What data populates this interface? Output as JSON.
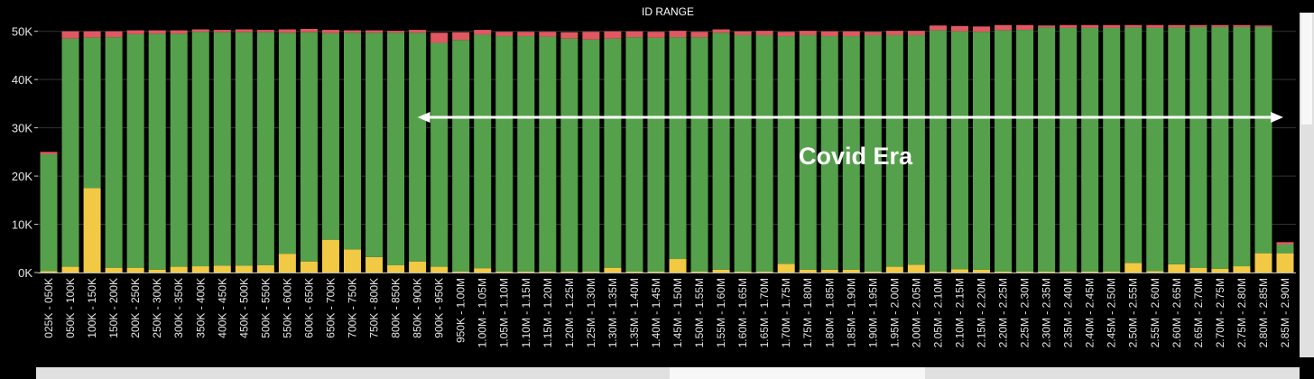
{
  "colors": {
    "background": "#000000",
    "green": "#55a04b",
    "yellow": "#f1c945",
    "red": "#df5862",
    "grid": "#333333",
    "scrollbar_track": "#e0e0e0",
    "scrollbar_thumb": "#f7f7f7"
  },
  "chart_data": {
    "type": "bar",
    "stacked": true,
    "title": "ID RANGE",
    "annotation": "Covid Era",
    "annotation_arrow": {
      "from_category": "850K - 900K",
      "to_category": "2.85M - 2.90M",
      "direction": "both"
    },
    "ylim": [
      0,
      52000
    ],
    "yticks": [
      0,
      10000,
      20000,
      30000,
      40000,
      50000
    ],
    "ytick_labels": [
      "0K",
      "10K",
      "20K",
      "30K",
      "40K",
      "50K"
    ],
    "grid": true,
    "categories": [
      "025K - 050K",
      "050K - 100K",
      "100K - 150K",
      "150K - 200K",
      "200K - 250K",
      "250K - 300K",
      "300K - 350K",
      "350K - 400K",
      "400K - 450K",
      "450K - 500K",
      "500K - 550K",
      "550K - 600K",
      "600K - 650K",
      "650K - 700K",
      "700K - 750K",
      "750K - 800K",
      "800K - 850K",
      "850K - 900K",
      "900K - 950K",
      "950K - 1.00M",
      "1.00M - 1.05M",
      "1.05M - 1.10M",
      "1.10M - 1.15M",
      "1.15M - 1.20M",
      "1.20M - 1.25M",
      "1.25M - 1.30M",
      "1.30M - 1.35M",
      "1.35M - 1.40M",
      "1.40M - 1.45M",
      "1.45M - 1.50M",
      "1.50M - 1.55M",
      "1.55M - 1.60M",
      "1.60M - 1.65M",
      "1.65M - 1.70M",
      "1.70M - 1.75M",
      "1.75M - 1.80M",
      "1.80M - 1.85M",
      "1.85M - 1.90M",
      "1.90M - 1.95M",
      "1.95M - 2.00M",
      "2.00M - 2.05M",
      "2.05M - 2.10M",
      "2.10M - 2.15M",
      "2.15M - 2.20M",
      "2.20M - 2.25M",
      "2.25M - 2.30M",
      "2.30M - 2.35M",
      "2.35M - 2.40M",
      "2.40M - 2.45M",
      "2.45M - 2.50M",
      "2.50M - 2.55M",
      "2.55M - 2.60M",
      "2.60M - 2.65M",
      "2.65M - 2.70M",
      "2.70M - 2.75M",
      "2.75M - 2.80M",
      "2.80M - 2.85M",
      "2.85M - 2.90M"
    ],
    "series": [
      {
        "color": "#f1c945",
        "values": [
          300,
          1200,
          17500,
          1000,
          1000,
          600,
          1200,
          1300,
          1400,
          1400,
          1500,
          3900,
          2300,
          6800,
          4800,
          3200,
          1500,
          2300,
          1200,
          200,
          900,
          200,
          200,
          200,
          200,
          200,
          1000,
          200,
          200,
          2800,
          200,
          600,
          200,
          200,
          1800,
          600,
          600,
          600,
          200,
          1200,
          1600,
          200,
          700,
          600,
          200,
          200,
          200,
          200,
          200,
          200,
          2000,
          300,
          1700,
          1000,
          800,
          1300,
          4000,
          4000
        ]
      },
      {
        "color": "#55a04b",
        "values": [
          24200,
          47300,
          31200,
          47800,
          48400,
          48900,
          48300,
          48600,
          48400,
          48400,
          48300,
          45800,
          47500,
          42800,
          44900,
          46500,
          48200,
          47400,
          46400,
          48000,
          48400,
          48800,
          48800,
          48700,
          48300,
          48100,
          47500,
          48600,
          48500,
          46000,
          48600,
          49100,
          49000,
          49000,
          47200,
          48600,
          48400,
          48400,
          49000,
          48000,
          47600,
          50000,
          49300,
          49300,
          50000,
          50100,
          50600,
          50500,
          50500,
          50500,
          48800,
          50400,
          49100,
          49900,
          50100,
          49600,
          46900,
          1800
        ]
      },
      {
        "color": "#df5862",
        "values": [
          500,
          1500,
          1300,
          1200,
          800,
          700,
          700,
          500,
          500,
          600,
          500,
          700,
          700,
          700,
          500,
          500,
          400,
          600,
          2100,
          1600,
          1000,
          900,
          900,
          1000,
          1300,
          1600,
          1500,
          1200,
          1200,
          1300,
          1100,
          700,
          800,
          900,
          900,
          900,
          1000,
          1000,
          700,
          900,
          900,
          1000,
          1100,
          1100,
          1100,
          1000,
          400,
          600,
          600,
          600,
          500,
          600,
          500,
          400,
          400,
          400,
          300,
          500
        ]
      }
    ]
  }
}
